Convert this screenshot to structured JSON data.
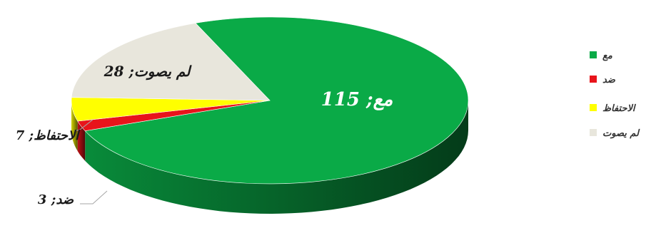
{
  "chart_data": {
    "type": "pie",
    "style": "3d",
    "title": "",
    "categories": [
      "مع",
      "ضد",
      "الاحتفاظ",
      "لم يصوت"
    ],
    "values": [
      115,
      3,
      7,
      28
    ],
    "data_labels": [
      "مع; 115",
      "ضد; 3",
      "الاحتفاظ; 7",
      "لم يصوت; 28"
    ],
    "colors": [
      "#0aaa47",
      "#e8141b",
      "#ffff00",
      "#e8e6dc"
    ],
    "legend": {
      "placement": "right",
      "entries": [
        "مع",
        "ضد",
        "الاحتفاظ",
        "لم يصوت"
      ]
    }
  }
}
